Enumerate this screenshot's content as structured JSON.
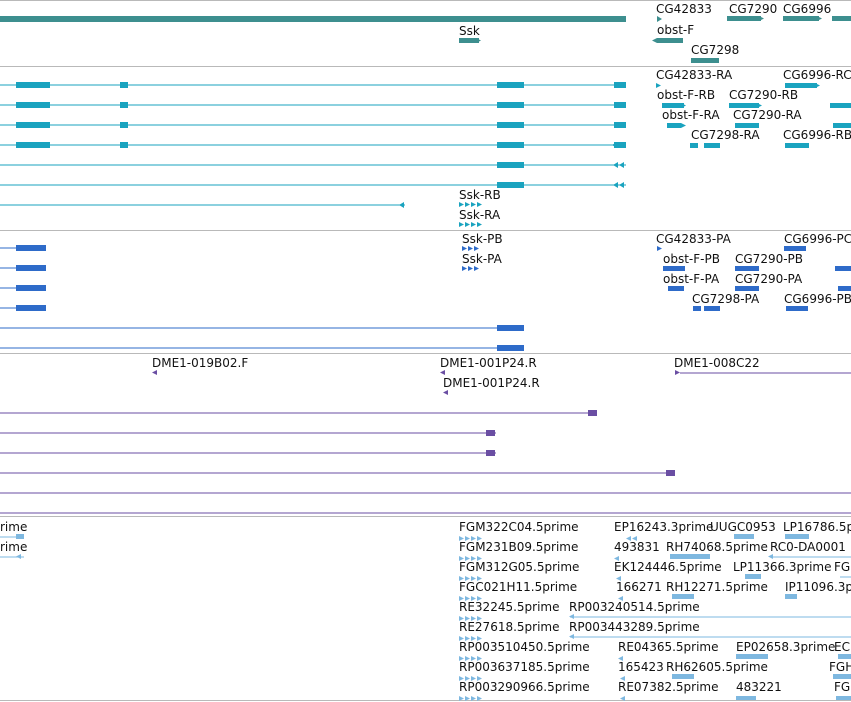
{
  "colors": {
    "gene": "#3d8f8f",
    "transcript": "#1aa3bf",
    "protein": "#2e6bc9",
    "oligo": "#6a4ea3",
    "est": "#7eb8e0",
    "separator": "#b9b9b9",
    "text": "#111111"
  },
  "tracks": [
    {
      "name": "gene",
      "labels": [
        {
          "text": "CG42833"
        },
        {
          "text": "CG7290"
        },
        {
          "text": "CG6996"
        },
        {
          "text": "Ssk"
        },
        {
          "text": "obst-F"
        },
        {
          "text": "CG7298"
        }
      ]
    },
    {
      "name": "transcript",
      "labels": [
        {
          "text": "CG42833-RA"
        },
        {
          "text": "CG6996-RC"
        },
        {
          "text": "obst-F-RB"
        },
        {
          "text": "CG7290-RB"
        },
        {
          "text": "obst-F-RA"
        },
        {
          "text": "CG7290-RA"
        },
        {
          "text": "CG7298-RA"
        },
        {
          "text": "CG6996-RB"
        },
        {
          "text": "Ssk-RB"
        },
        {
          "text": "Ssk-RA"
        }
      ]
    },
    {
      "name": "protein",
      "labels": [
        {
          "text": "Ssk-PB"
        },
        {
          "text": "Ssk-PA"
        },
        {
          "text": "CG42833-PA"
        },
        {
          "text": "CG6996-PC"
        },
        {
          "text": "obst-F-PB"
        },
        {
          "text": "CG7290-PB"
        },
        {
          "text": "obst-F-PA"
        },
        {
          "text": "CG7290-PA"
        },
        {
          "text": "CG7298-PA"
        },
        {
          "text": "CG6996-PB"
        }
      ]
    },
    {
      "name": "oligo",
      "labels": [
        {
          "text": "DME1-019B02.F"
        },
        {
          "text": "DME1-001P24.R"
        },
        {
          "text": "DME1-001P24.R"
        },
        {
          "text": "DME1-008C22"
        }
      ]
    },
    {
      "name": "est",
      "labels": [
        {
          "text": "rime"
        },
        {
          "text": "rime"
        },
        {
          "text": "FGM322C04.5prime"
        },
        {
          "text": "EP16243.3prime"
        },
        {
          "text": "UUGC0953"
        },
        {
          "text": "LP16786.5p"
        },
        {
          "text": "FGM231B09.5prime"
        },
        {
          "text": "493831"
        },
        {
          "text": "RH74068.5prime"
        },
        {
          "text": "RC0-DA0001"
        },
        {
          "text": "FGM312G05.5prime"
        },
        {
          "text": "EK124446.5prime"
        },
        {
          "text": "LP11366.3prime"
        },
        {
          "text": "FGH"
        },
        {
          "text": "FGC021H11.5prime"
        },
        {
          "text": "166271"
        },
        {
          "text": "RH12271.5prime"
        },
        {
          "text": "IP11096.3p"
        },
        {
          "text": "RE32245.5prime"
        },
        {
          "text": "RP003240514.5prime"
        },
        {
          "text": "RE27618.5prime"
        },
        {
          "text": "RP003443289.5prime"
        },
        {
          "text": "RP003510450.5prime"
        },
        {
          "text": "RE04365.5prime"
        },
        {
          "text": "EP02658.3prime"
        },
        {
          "text": "EC"
        },
        {
          "text": "RP003637185.5prime"
        },
        {
          "text": "165423"
        },
        {
          "text": "RH62605.5prime"
        },
        {
          "text": "FGH"
        },
        {
          "text": "RP003290966.5prime"
        },
        {
          "text": "RE07382.5prime"
        },
        {
          "text": "483221"
        },
        {
          "text": "FG"
        }
      ]
    }
  ]
}
